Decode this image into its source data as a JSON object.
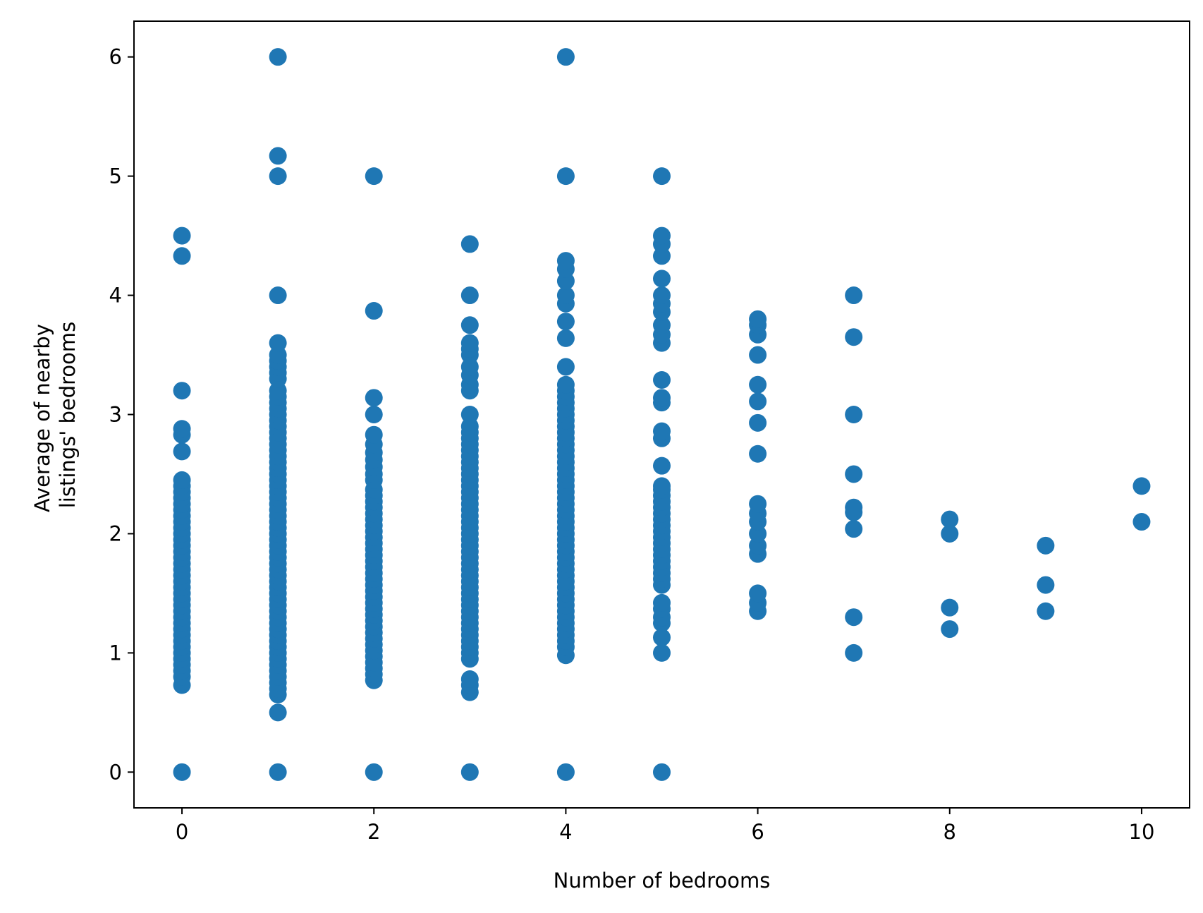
{
  "chart_data": {
    "type": "scatter",
    "title": "",
    "xlabel": "Number of bedrooms",
    "ylabel_lines": [
      "Average of nearby",
      "listings' bedrooms"
    ],
    "xlim": [
      -0.5,
      10.5
    ],
    "ylim": [
      -0.3,
      6.3
    ],
    "xticks": [
      0,
      2,
      4,
      6,
      8,
      10
    ],
    "yticks": [
      0,
      1,
      2,
      3,
      4,
      5,
      6
    ],
    "grid": false,
    "legend": "none",
    "marker_color": "#1f77b4",
    "groups": [
      {
        "x": 0,
        "y": [
          0,
          0.73,
          0.8,
          0.85,
          0.9,
          0.95,
          1.0,
          1.05,
          1.1,
          1.15,
          1.2,
          1.25,
          1.3,
          1.35,
          1.4,
          1.45,
          1.5,
          1.55,
          1.6,
          1.65,
          1.7,
          1.75,
          1.8,
          1.85,
          1.9,
          1.95,
          2.0,
          2.05,
          2.1,
          2.15,
          2.2,
          2.25,
          2.3,
          2.35,
          2.4,
          2.45,
          2.69,
          2.83,
          2.88,
          3.2,
          4.33,
          4.5
        ]
      },
      {
        "x": 1,
        "y": [
          0,
          0.5,
          0.65,
          0.7,
          0.75,
          0.8,
          0.85,
          0.9,
          0.95,
          1.0,
          1.05,
          1.1,
          1.15,
          1.2,
          1.25,
          1.3,
          1.35,
          1.4,
          1.45,
          1.5,
          1.55,
          1.6,
          1.65,
          1.7,
          1.75,
          1.8,
          1.85,
          1.9,
          1.95,
          2.0,
          2.05,
          2.1,
          2.15,
          2.2,
          2.25,
          2.3,
          2.35,
          2.4,
          2.45,
          2.5,
          2.55,
          2.6,
          2.65,
          2.7,
          2.75,
          2.8,
          2.85,
          2.9,
          2.95,
          3.0,
          3.05,
          3.1,
          3.15,
          3.2,
          3.3,
          3.35,
          3.4,
          3.45,
          3.5,
          3.6,
          4.0,
          5.0,
          5.17,
          6.0
        ]
      },
      {
        "x": 2,
        "y": [
          0,
          0.77,
          0.82,
          0.87,
          0.92,
          0.97,
          1.02,
          1.07,
          1.12,
          1.17,
          1.22,
          1.27,
          1.32,
          1.37,
          1.42,
          1.47,
          1.52,
          1.57,
          1.62,
          1.67,
          1.72,
          1.77,
          1.82,
          1.87,
          1.92,
          1.97,
          2.02,
          2.07,
          2.12,
          2.17,
          2.22,
          2.27,
          2.32,
          2.37,
          2.45,
          2.5,
          2.56,
          2.62,
          2.68,
          2.75,
          2.83,
          3.0,
          3.14,
          3.87,
          5.0
        ]
      },
      {
        "x": 3,
        "y": [
          0,
          0.67,
          0.73,
          0.78,
          0.95,
          1.0,
          1.05,
          1.1,
          1.15,
          1.2,
          1.25,
          1.3,
          1.35,
          1.4,
          1.45,
          1.5,
          1.55,
          1.6,
          1.65,
          1.7,
          1.75,
          1.8,
          1.85,
          1.9,
          1.95,
          2.0,
          2.05,
          2.1,
          2.15,
          2.2,
          2.25,
          2.3,
          2.35,
          2.4,
          2.45,
          2.5,
          2.55,
          2.6,
          2.65,
          2.7,
          2.75,
          2.8,
          2.85,
          2.9,
          3.0,
          3.2,
          3.25,
          3.33,
          3.4,
          3.5,
          3.55,
          3.6,
          3.75,
          4.0,
          4.43
        ]
      },
      {
        "x": 4,
        "y": [
          0,
          0.98,
          1.05,
          1.1,
          1.15,
          1.2,
          1.25,
          1.3,
          1.35,
          1.4,
          1.45,
          1.5,
          1.55,
          1.6,
          1.65,
          1.7,
          1.75,
          1.8,
          1.85,
          1.9,
          1.95,
          2.0,
          2.05,
          2.1,
          2.15,
          2.2,
          2.25,
          2.3,
          2.35,
          2.4,
          2.45,
          2.5,
          2.55,
          2.6,
          2.65,
          2.7,
          2.75,
          2.8,
          2.85,
          2.9,
          2.95,
          3.0,
          3.05,
          3.1,
          3.15,
          3.2,
          3.25,
          3.4,
          3.64,
          3.78,
          3.93,
          4.0,
          4.12,
          4.22,
          4.29,
          5.0,
          6.0
        ]
      },
      {
        "x": 5,
        "y": [
          0,
          1.0,
          1.13,
          1.25,
          1.3,
          1.37,
          1.42,
          1.57,
          1.62,
          1.67,
          1.72,
          1.77,
          1.82,
          1.87,
          1.92,
          1.97,
          2.02,
          2.07,
          2.12,
          2.17,
          2.22,
          2.27,
          2.32,
          2.37,
          2.4,
          2.57,
          2.8,
          2.86,
          3.1,
          3.14,
          3.29,
          3.6,
          3.67,
          3.75,
          3.86,
          3.93,
          4.0,
          4.14,
          4.33,
          4.43,
          4.5,
          5.0
        ]
      },
      {
        "x": 6,
        "y": [
          1.35,
          1.42,
          1.5,
          1.83,
          1.9,
          2.0,
          2.1,
          2.17,
          2.25,
          2.67,
          2.93,
          3.11,
          3.25,
          3.5,
          3.67,
          3.75,
          3.8
        ]
      },
      {
        "x": 7,
        "y": [
          1.0,
          1.3,
          2.04,
          2.18,
          2.22,
          2.5,
          3.0,
          3.65,
          4.0
        ]
      },
      {
        "x": 8,
        "y": [
          1.2,
          1.38,
          2.0,
          2.12
        ]
      },
      {
        "x": 9,
        "y": [
          1.35,
          1.57,
          1.9
        ]
      },
      {
        "x": 10,
        "y": [
          2.1,
          2.4
        ]
      }
    ]
  }
}
